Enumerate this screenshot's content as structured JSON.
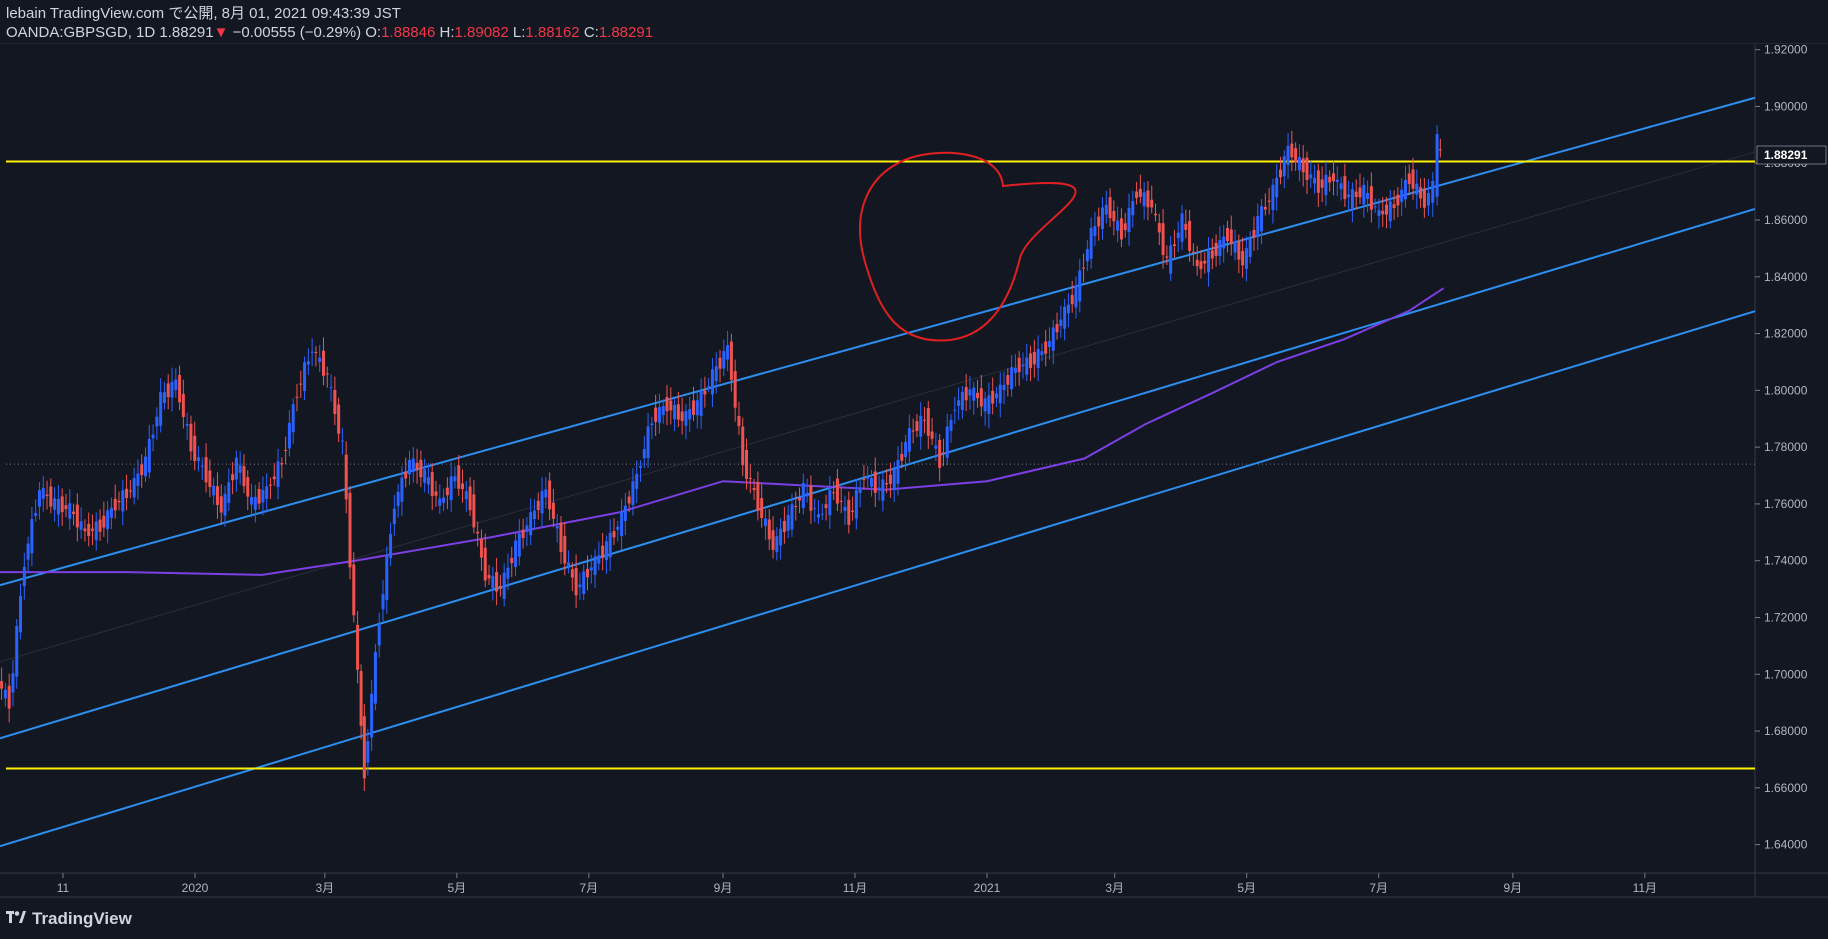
{
  "header": {
    "publisher": "lebain TradingView.com で公開, 8月 01, 2021 09:43:39 JST",
    "symbol": "OANDA:GBPSGD, 1D",
    "last": "1.88291",
    "arrow": "▼",
    "change": "−0.00555 (−0.29%)",
    "o_label": "O:",
    "o": "1.88846",
    "h_label": "H:",
    "h": "1.89082",
    "l_label": "L:",
    "l": "1.88162",
    "c_label": "C:",
    "c": "1.88291"
  },
  "footer": {
    "logo_icon": "tradingview-logo-icon",
    "brand": "TradingView"
  },
  "colors": {
    "background": "#131722",
    "up": "#2962ff",
    "down": "#ef5350",
    "channel": "#2c8ff0",
    "horizontal": "#fff200",
    "ma": "#7b3fe4",
    "annotation": "#e02020",
    "price_badge_bg": "#131722"
  },
  "chart_data": {
    "type": "candlestick",
    "symbol": "OANDA:GBPSGD",
    "interval": "1D",
    "ylim": [
      1.63,
      1.922
    ],
    "y_ticks": [
      "1.92000",
      "1.90000",
      "1.88000",
      "1.86000",
      "1.84000",
      "1.82000",
      "1.80000",
      "1.78000",
      "1.76000",
      "1.74000",
      "1.72000",
      "1.70000",
      "1.68000",
      "1.66000",
      "1.64000"
    ],
    "x_ticks": [
      "11",
      "2020",
      "3月",
      "5月",
      "7月",
      "9月",
      "11月",
      "2021",
      "3月",
      "5月",
      "7月",
      "9月",
      "11月"
    ],
    "x_tick_dates": [
      "2019-11-01",
      "2020-01-01",
      "2020-03-01",
      "2020-05-01",
      "2020-07-01",
      "2020-09-01",
      "2020-11-01",
      "2021-01-01",
      "2021-03-01",
      "2021-05-01",
      "2021-07-01",
      "2021-09-01",
      "2021-11-01"
    ],
    "last_price_label": "1.88291",
    "dotted_reference_price": 1.774,
    "close_series": [
      {
        "date": "2019-10-01",
        "close": 1.7
      },
      {
        "date": "2019-10-08",
        "close": 1.69
      },
      {
        "date": "2019-10-15",
        "close": 1.74
      },
      {
        "date": "2019-10-22",
        "close": 1.765
      },
      {
        "date": "2019-10-29",
        "close": 1.76
      },
      {
        "date": "2019-11-05",
        "close": 1.758
      },
      {
        "date": "2019-11-12",
        "close": 1.75
      },
      {
        "date": "2019-11-19",
        "close": 1.752
      },
      {
        "date": "2019-11-26",
        "close": 1.76
      },
      {
        "date": "2019-12-03",
        "close": 1.765
      },
      {
        "date": "2019-12-10",
        "close": 1.775
      },
      {
        "date": "2019-12-17",
        "close": 1.797
      },
      {
        "date": "2019-12-24",
        "close": 1.803
      },
      {
        "date": "2019-12-31",
        "close": 1.78
      },
      {
        "date": "2020-01-07",
        "close": 1.77
      },
      {
        "date": "2020-01-14",
        "close": 1.758
      },
      {
        "date": "2020-01-21",
        "close": 1.775
      },
      {
        "date": "2020-01-28",
        "close": 1.76
      },
      {
        "date": "2020-02-04",
        "close": 1.765
      },
      {
        "date": "2020-02-11",
        "close": 1.775
      },
      {
        "date": "2020-02-18",
        "close": 1.8
      },
      {
        "date": "2020-02-25",
        "close": 1.815
      },
      {
        "date": "2020-03-03",
        "close": 1.805
      },
      {
        "date": "2020-03-10",
        "close": 1.78
      },
      {
        "date": "2020-03-17",
        "close": 1.7
      },
      {
        "date": "2020-03-20",
        "close": 1.665
      },
      {
        "date": "2020-03-27",
        "close": 1.72
      },
      {
        "date": "2020-04-03",
        "close": 1.76
      },
      {
        "date": "2020-04-10",
        "close": 1.775
      },
      {
        "date": "2020-04-17",
        "close": 1.77
      },
      {
        "date": "2020-04-24",
        "close": 1.76
      },
      {
        "date": "2020-05-01",
        "close": 1.77
      },
      {
        "date": "2020-05-08",
        "close": 1.76
      },
      {
        "date": "2020-05-15",
        "close": 1.735
      },
      {
        "date": "2020-05-22",
        "close": 1.73
      },
      {
        "date": "2020-05-29",
        "close": 1.745
      },
      {
        "date": "2020-06-05",
        "close": 1.755
      },
      {
        "date": "2020-06-12",
        "close": 1.765
      },
      {
        "date": "2020-06-19",
        "close": 1.745
      },
      {
        "date": "2020-06-26",
        "close": 1.73
      },
      {
        "date": "2020-07-03",
        "close": 1.738
      },
      {
        "date": "2020-07-10",
        "close": 1.745
      },
      {
        "date": "2020-07-17",
        "close": 1.755
      },
      {
        "date": "2020-07-24",
        "close": 1.77
      },
      {
        "date": "2020-07-31",
        "close": 1.79
      },
      {
        "date": "2020-08-07",
        "close": 1.795
      },
      {
        "date": "2020-08-14",
        "close": 1.79
      },
      {
        "date": "2020-08-21",
        "close": 1.795
      },
      {
        "date": "2020-08-28",
        "close": 1.805
      },
      {
        "date": "2020-09-04",
        "close": 1.815
      },
      {
        "date": "2020-09-11",
        "close": 1.775
      },
      {
        "date": "2020-09-18",
        "close": 1.76
      },
      {
        "date": "2020-09-25",
        "close": 1.745
      },
      {
        "date": "2020-10-02",
        "close": 1.755
      },
      {
        "date": "2020-10-09",
        "close": 1.765
      },
      {
        "date": "2020-10-16",
        "close": 1.755
      },
      {
        "date": "2020-10-23",
        "close": 1.765
      },
      {
        "date": "2020-10-30",
        "close": 1.755
      },
      {
        "date": "2020-11-06",
        "close": 1.77
      },
      {
        "date": "2020-11-13",
        "close": 1.765
      },
      {
        "date": "2020-11-20",
        "close": 1.77
      },
      {
        "date": "2020-11-27",
        "close": 1.785
      },
      {
        "date": "2020-12-04",
        "close": 1.79
      },
      {
        "date": "2020-12-11",
        "close": 1.775
      },
      {
        "date": "2020-12-18",
        "close": 1.795
      },
      {
        "date": "2020-12-25",
        "close": 1.8
      },
      {
        "date": "2021-01-01",
        "close": 1.795
      },
      {
        "date": "2021-01-08",
        "close": 1.8
      },
      {
        "date": "2021-01-15",
        "close": 1.808
      },
      {
        "date": "2021-01-22",
        "close": 1.81
      },
      {
        "date": "2021-01-29",
        "close": 1.815
      },
      {
        "date": "2021-02-05",
        "close": 1.825
      },
      {
        "date": "2021-02-12",
        "close": 1.835
      },
      {
        "date": "2021-02-19",
        "close": 1.855
      },
      {
        "date": "2021-02-26",
        "close": 1.865
      },
      {
        "date": "2021-03-05",
        "close": 1.855
      },
      {
        "date": "2021-03-12",
        "close": 1.87
      },
      {
        "date": "2021-03-19",
        "close": 1.865
      },
      {
        "date": "2021-03-26",
        "close": 1.845
      },
      {
        "date": "2021-04-02",
        "close": 1.86
      },
      {
        "date": "2021-04-09",
        "close": 1.843
      },
      {
        "date": "2021-04-16",
        "close": 1.848
      },
      {
        "date": "2021-04-23",
        "close": 1.855
      },
      {
        "date": "2021-04-30",
        "close": 1.845
      },
      {
        "date": "2021-05-07",
        "close": 1.86
      },
      {
        "date": "2021-05-14",
        "close": 1.87
      },
      {
        "date": "2021-05-21",
        "close": 1.885
      },
      {
        "date": "2021-05-28",
        "close": 1.878
      },
      {
        "date": "2021-06-04",
        "close": 1.872
      },
      {
        "date": "2021-06-11",
        "close": 1.875
      },
      {
        "date": "2021-06-18",
        "close": 1.868
      },
      {
        "date": "2021-06-25",
        "close": 1.87
      },
      {
        "date": "2021-07-02",
        "close": 1.862
      },
      {
        "date": "2021-07-09",
        "close": 1.865
      },
      {
        "date": "2021-07-16",
        "close": 1.875
      },
      {
        "date": "2021-07-23",
        "close": 1.866
      },
      {
        "date": "2021-07-27",
        "close": 1.872
      },
      {
        "date": "2021-07-29",
        "close": 1.888
      },
      {
        "date": "2021-07-30",
        "close": 1.8829
      }
    ],
    "moving_average": [
      {
        "date": "2019-10-01",
        "value": 1.736
      },
      {
        "date": "2019-12-01",
        "value": 1.736
      },
      {
        "date": "2020-02-01",
        "value": 1.735
      },
      {
        "date": "2020-03-15",
        "value": 1.74
      },
      {
        "date": "2020-05-15",
        "value": 1.748
      },
      {
        "date": "2020-07-15",
        "value": 1.757
      },
      {
        "date": "2020-09-01",
        "value": 1.768
      },
      {
        "date": "2020-11-15",
        "value": 1.765
      },
      {
        "date": "2021-01-01",
        "value": 1.768
      },
      {
        "date": "2021-02-15",
        "value": 1.776
      },
      {
        "date": "2021-03-15",
        "value": 1.788
      },
      {
        "date": "2021-04-15",
        "value": 1.799
      },
      {
        "date": "2021-05-15",
        "value": 1.81
      },
      {
        "date": "2021-06-15",
        "value": 1.818
      },
      {
        "date": "2021-07-15",
        "value": 1.828
      },
      {
        "date": "2021-07-31",
        "value": 1.836
      }
    ],
    "horizontal_lines": [
      1.8806,
      1.6668
    ],
    "channel_lines": [
      {
        "p1": {
          "date": "2019-10-01",
          "price": 1.731
        },
        "p2": {
          "date": "2021-12-31",
          "price": 1.905
        }
      },
      {
        "p1": {
          "date": "2019-10-01",
          "price": 1.677
        },
        "p2": {
          "date": "2021-12-31",
          "price": 1.866
        }
      },
      {
        "p1": {
          "date": "2019-10-01",
          "price": 1.639
        },
        "p2": {
          "date": "2021-12-31",
          "price": 1.83
        }
      },
      {
        "p1": {
          "date": "2019-10-01",
          "price": 1.704
        },
        "p2": {
          "date": "2021-12-31",
          "price": 1.886
        }
      }
    ]
  }
}
